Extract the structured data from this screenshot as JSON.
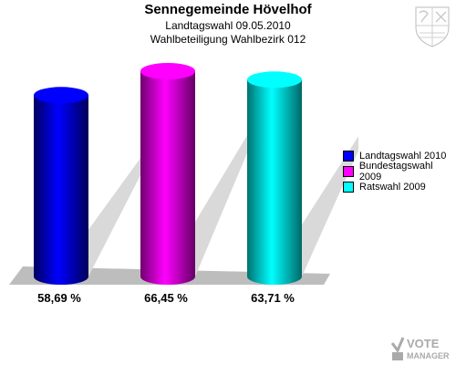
{
  "header": {
    "title": "Sennegemeinde Hövelhof",
    "subtitle_1": "Landtagswahl 09.05.2010",
    "subtitle_2": "Wahlbeteiligung Wahlbezirk 012"
  },
  "branding": {
    "text_1": "VOTE",
    "text_2": "MANAGER"
  },
  "chart_data": {
    "type": "bar",
    "title": "Sennegemeinde Hövelhof",
    "subtitle": "Landtagswahl 09.05.2010 — Wahlbeteiligung Wahlbezirk 012",
    "categories": [
      "Landtagswahl 2010",
      "Bundestagswahl 2009",
      "Ratswahl 2009"
    ],
    "values": [
      58.69,
      66.45,
      63.71
    ],
    "value_labels": [
      "58,69 %",
      "66,45 %",
      "63,71 %"
    ],
    "colors": [
      "#0000ff",
      "#ff00ff",
      "#00ffff"
    ],
    "legend_position": "right",
    "grid": false
  }
}
